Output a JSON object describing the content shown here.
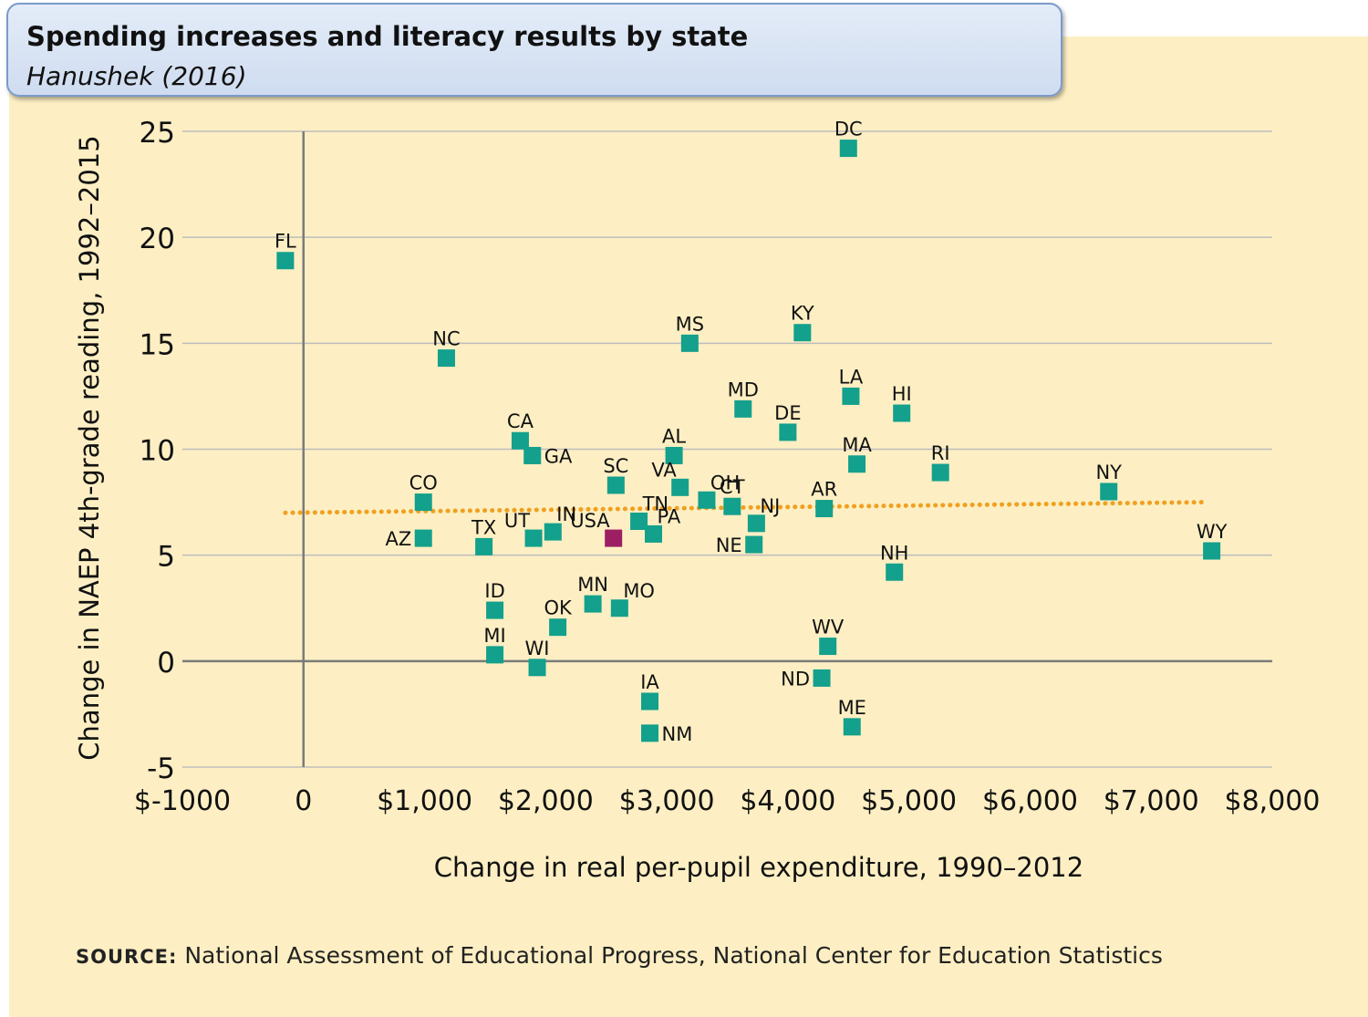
{
  "header": {
    "title": "Spending increases and literacy results by state",
    "subtitle": "Hanushek (2016)"
  },
  "footer": {
    "source_label": "SOURCE:",
    "source_text": "National Assessment of Educational Progress, National Center for Education Statistics"
  },
  "colors": {
    "background": "#fdefc3",
    "point": "#13a08c",
    "point_usa": "#9c1f63",
    "trend": "#f0a020",
    "grid": "#bdbdbd",
    "axis": "#7a7a7a"
  },
  "chart_data": {
    "type": "scatter",
    "title": "Spending increases and literacy results by state",
    "subtitle": "Hanushek (2016)",
    "xlabel": "Change in real per-pupil expenditure, 1990–2012",
    "ylabel": "Change in NAEP 4th-grade reading, 1992–2015",
    "xlim": [
      -1000,
      8000
    ],
    "ylim": [
      -5,
      25
    ],
    "x_ticks": [
      -1000,
      0,
      1000,
      2000,
      3000,
      4000,
      5000,
      6000,
      7000,
      8000
    ],
    "x_tick_labels": [
      "$-1000",
      "0",
      "$1,000",
      "$2,000",
      "$3,000",
      "$4,000",
      "$5,000",
      "$6,000",
      "$7,000",
      "$8,000"
    ],
    "y_ticks": [
      -5,
      0,
      5,
      10,
      15,
      20,
      25
    ],
    "y_tick_labels": [
      "-5",
      "0",
      "5",
      "10",
      "15",
      "20",
      "25"
    ],
    "grid": "horizontal",
    "trend_line": {
      "style": "dotted",
      "x": [
        -150,
        7450
      ],
      "y": [
        7.0,
        7.5
      ]
    },
    "points": [
      {
        "label": "DC",
        "x": 4500,
        "y": 24.2,
        "lpos": "top"
      },
      {
        "label": "FL",
        "x": -150,
        "y": 18.9,
        "lpos": "top"
      },
      {
        "label": "NC",
        "x": 1180,
        "y": 14.3,
        "lpos": "top"
      },
      {
        "label": "MS",
        "x": 3190,
        "y": 15.0,
        "lpos": "top"
      },
      {
        "label": "KY",
        "x": 4120,
        "y": 15.5,
        "lpos": "top"
      },
      {
        "label": "MD",
        "x": 3630,
        "y": 11.9,
        "lpos": "top"
      },
      {
        "label": "LA",
        "x": 4520,
        "y": 12.5,
        "lpos": "top"
      },
      {
        "label": "HI",
        "x": 4940,
        "y": 11.7,
        "lpos": "top"
      },
      {
        "label": "DE",
        "x": 4000,
        "y": 10.8,
        "lpos": "top"
      },
      {
        "label": "CA",
        "x": 1790,
        "y": 10.4,
        "lpos": "top"
      },
      {
        "label": "GA",
        "x": 1890,
        "y": 9.7,
        "lpos": "right"
      },
      {
        "label": "AL",
        "x": 3060,
        "y": 9.7,
        "lpos": "top"
      },
      {
        "label": "MA",
        "x": 4570,
        "y": 9.3,
        "lpos": "top"
      },
      {
        "label": "RI",
        "x": 5260,
        "y": 8.9,
        "lpos": "top"
      },
      {
        "label": "NY",
        "x": 6650,
        "y": 8.0,
        "lpos": "top"
      },
      {
        "label": "SC",
        "x": 2580,
        "y": 8.3,
        "lpos": "top"
      },
      {
        "label": "VA",
        "x": 3110,
        "y": 8.2,
        "lpos": "topleft"
      },
      {
        "label": "OH",
        "x": 3330,
        "y": 7.6,
        "lpos": "topright"
      },
      {
        "label": "CT",
        "x": 3540,
        "y": 7.3,
        "lpos": "top"
      },
      {
        "label": "NJ",
        "x": 3740,
        "y": 6.5,
        "lpos": "topright"
      },
      {
        "label": "AR",
        "x": 4300,
        "y": 7.2,
        "lpos": "top"
      },
      {
        "label": "CO",
        "x": 990,
        "y": 7.5,
        "lpos": "top"
      },
      {
        "label": "AZ",
        "x": 990,
        "y": 5.8,
        "lpos": "left"
      },
      {
        "label": "TX",
        "x": 1490,
        "y": 5.4,
        "lpos": "top"
      },
      {
        "label": "UT",
        "x": 1900,
        "y": 5.8,
        "lpos": "topleft"
      },
      {
        "label": "IN",
        "x": 2060,
        "y": 6.1,
        "lpos": "topright"
      },
      {
        "label": "USA",
        "x": 2560,
        "y": 5.8,
        "lpos": "topleft",
        "highlight": true
      },
      {
        "label": "TN",
        "x": 2770,
        "y": 6.6,
        "lpos": "topright"
      },
      {
        "label": "PA",
        "x": 2890,
        "y": 6.0,
        "lpos": "topright"
      },
      {
        "label": "NE",
        "x": 3720,
        "y": 5.5,
        "lpos": "left"
      },
      {
        "label": "NH",
        "x": 4880,
        "y": 4.2,
        "lpos": "top"
      },
      {
        "label": "WY",
        "x": 7500,
        "y": 5.2,
        "lpos": "top"
      },
      {
        "label": "ID",
        "x": 1580,
        "y": 2.4,
        "lpos": "top"
      },
      {
        "label": "MN",
        "x": 2390,
        "y": 2.7,
        "lpos": "top"
      },
      {
        "label": "MO",
        "x": 2610,
        "y": 2.5,
        "lpos": "topright"
      },
      {
        "label": "OK",
        "x": 2100,
        "y": 1.6,
        "lpos": "top"
      },
      {
        "label": "WV",
        "x": 4330,
        "y": 0.7,
        "lpos": "top"
      },
      {
        "label": "MI",
        "x": 1580,
        "y": 0.3,
        "lpos": "top"
      },
      {
        "label": "WI",
        "x": 1930,
        "y": -0.3,
        "lpos": "top"
      },
      {
        "label": "ND",
        "x": 4280,
        "y": -0.8,
        "lpos": "left"
      },
      {
        "label": "IA",
        "x": 2860,
        "y": -1.9,
        "lpos": "top"
      },
      {
        "label": "ME",
        "x": 4530,
        "y": -3.1,
        "lpos": "top"
      },
      {
        "label": "NM",
        "x": 2860,
        "y": -3.4,
        "lpos": "right"
      }
    ]
  }
}
